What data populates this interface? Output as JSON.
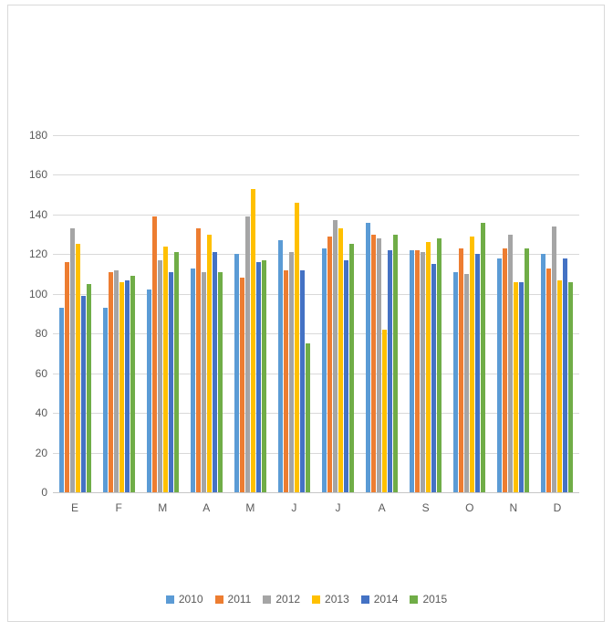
{
  "chart_data": {
    "type": "bar",
    "title": "",
    "xlabel": "",
    "ylabel": "",
    "categories": [
      "E",
      "F",
      "M",
      "A",
      "M",
      "J",
      "J",
      "A",
      "S",
      "O",
      "N",
      "D"
    ],
    "series": [
      {
        "name": "2010",
        "color": "#5B9BD5",
        "values": [
          93,
          93,
          102,
          113,
          120,
          127,
          123,
          136,
          122,
          111,
          118,
          120
        ]
      },
      {
        "name": "2011",
        "color": "#ED7D31",
        "values": [
          116,
          111,
          139,
          133,
          108,
          112,
          129,
          130,
          122,
          123,
          123,
          113
        ]
      },
      {
        "name": "2012",
        "color": "#A5A5A5",
        "values": [
          133,
          112,
          117,
          111,
          139,
          121,
          137,
          128,
          121,
          110,
          130,
          134
        ]
      },
      {
        "name": "2013",
        "color": "#FFC000",
        "values": [
          125,
          106,
          124,
          130,
          153,
          146,
          133,
          82,
          126,
          129,
          106,
          107
        ]
      },
      {
        "name": "2014",
        "color": "#4472C4",
        "values": [
          99,
          107,
          111,
          121,
          116,
          112,
          117,
          122,
          115,
          120,
          106,
          118
        ]
      },
      {
        "name": "2015",
        "color": "#70AD47",
        "values": [
          105,
          109,
          121,
          111,
          117,
          75,
          125,
          130,
          128,
          136,
          123,
          106
        ]
      }
    ],
    "ylim": [
      0,
      180
    ],
    "yticks": [
      0,
      20,
      40,
      60,
      80,
      100,
      120,
      140,
      160,
      180
    ],
    "grid": true,
    "legend_position": "bottom"
  },
  "colors": {
    "gridline": "#D9D9D9",
    "axis_line": "#C6C6C6",
    "tick_text": "#595959",
    "frame_border": "#D9D9D9",
    "background": "#FFFFFF"
  }
}
